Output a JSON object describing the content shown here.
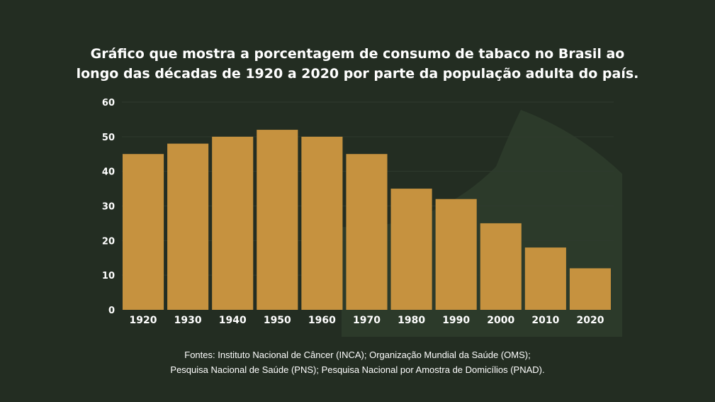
{
  "title_lines": [
    "Gráfico que mostra a porcentagem de consumo de tabaco no Brasil ao",
    "longo das décadas de 1920 a 2020 por parte da população adulta do país."
  ],
  "sources_lines": [
    "Fontes: Instituto Nacional de Câncer (INCA); Organização Mundial da Saúde (OMS);",
    "Pesquisa Nacional de Saúde (PNS); Pesquisa Nacional por Amostra de Domicílios (PNAD)."
  ],
  "colors": {
    "background": "#232d22",
    "bar": "#c6923f",
    "grid": "#2f3a2e",
    "decor": "#2c3a2a",
    "text": "#ffffff"
  },
  "chart_data": {
    "type": "bar",
    "categories": [
      "1920",
      "1930",
      "1940",
      "1950",
      "1960",
      "1970",
      "1980",
      "1990",
      "2000",
      "2010",
      "2020"
    ],
    "values": [
      45,
      48,
      50,
      52,
      50,
      45,
      35,
      32,
      25,
      18,
      12
    ],
    "yticks": [
      "0",
      "10",
      "20",
      "30",
      "40",
      "50",
      "60"
    ],
    "ylim": [
      0,
      60
    ],
    "grid": true,
    "legend": "none",
    "title": "Gráfico que mostra a porcentagem de consumo de tabaco no Brasil ao longo das décadas de 1920 a 2020 por parte da população adulta do país.",
    "xlabel": "",
    "ylabel": ""
  }
}
